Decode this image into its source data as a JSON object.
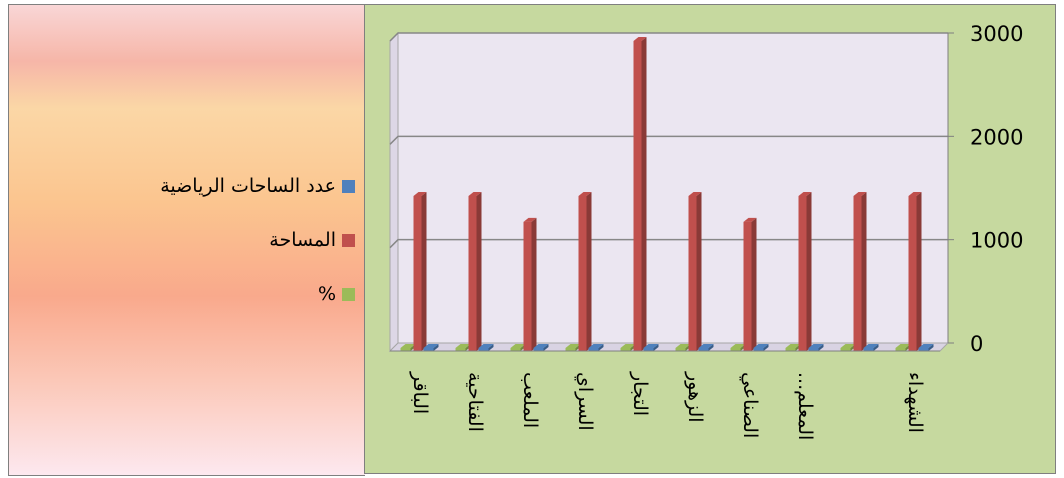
{
  "legend": [
    {
      "label": "عدد الساحات الرياضية",
      "color": "#4f81bd"
    },
    {
      "label": "المساحة",
      "color": "#c0504d"
    },
    {
      "label": "%",
      "color": "#9bbb59"
    }
  ],
  "chart_data": {
    "type": "bar",
    "categories": [
      "الباقر",
      "الفتاحية",
      "الملعب",
      "السراي",
      "التجار",
      "الزهور",
      "الصناعي",
      "المعلم...",
      "",
      "الشهداء"
    ],
    "series": [
      {
        "name": "عدد الساحات الرياضية",
        "color": "#4f81bd",
        "values": [
          1,
          1,
          1,
          1,
          2,
          1,
          1,
          1,
          1,
          1
        ]
      },
      {
        "name": "المساحة",
        "color": "#c0504d",
        "values": [
          1500,
          1500,
          1250,
          1500,
          3000,
          1500,
          1250,
          1500,
          1500,
          1500
        ]
      },
      {
        "name": "%",
        "color": "#9bbb59",
        "values": [
          8.3,
          8.3,
          6.9,
          8.3,
          16.7,
          8.3,
          6.9,
          8.3,
          8.3,
          8.3
        ]
      }
    ],
    "yticks": [
      "0",
      "1000",
      "2000",
      "3000"
    ],
    "ylim": [
      0,
      3000
    ],
    "y_axis_side": "right",
    "grid": true,
    "legend_position": "left",
    "colors": {
      "plot_area": "#ebe6f1",
      "chart_area": "#c6d99f",
      "grid": "#878787"
    }
  }
}
